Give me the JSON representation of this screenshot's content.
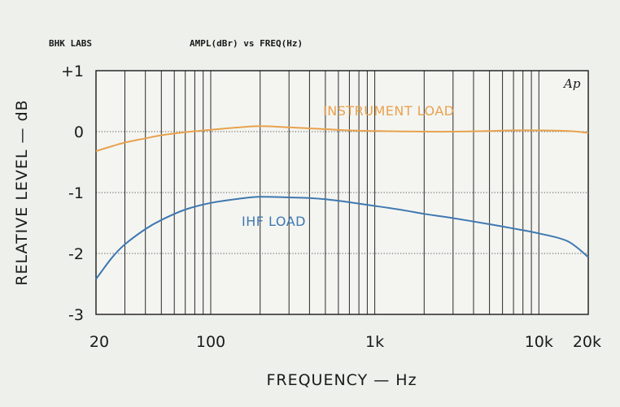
{
  "chart_data": {
    "type": "line",
    "header_left": "BHK LABS",
    "header_title": "AMPL(dBr) vs FREQ(Hz)",
    "corner_mark": "Ap",
    "xlabel": "FREQUENCY — Hz",
    "ylabel": "RELATIVE LEVEL — dB",
    "x_scale": "log",
    "xlim": [
      20,
      20000
    ],
    "ylim": [
      -3,
      1
    ],
    "grid": true,
    "y_ticks": [
      {
        "value": 1,
        "label": "+1"
      },
      {
        "value": 0,
        "label": "0"
      },
      {
        "value": -1,
        "label": "-1"
      },
      {
        "value": -2,
        "label": "-2"
      },
      {
        "value": -3,
        "label": "-3"
      }
    ],
    "x_ticks": [
      {
        "value": 20,
        "label": "20"
      },
      {
        "value": 100,
        "label": "100"
      },
      {
        "value": 1000,
        "label": "1k"
      },
      {
        "value": 10000,
        "label": "10k"
      },
      {
        "value": 20000,
        "label": "20k"
      }
    ],
    "series": [
      {
        "name": "INSTRUMENT LOAD",
        "color": "#e8a24e",
        "x": [
          20,
          25,
          30,
          40,
          50,
          70,
          100,
          150,
          200,
          300,
          500,
          700,
          1000,
          2000,
          3000,
          5000,
          7000,
          10000,
          15000,
          20000
        ],
        "y": [
          -0.32,
          -0.24,
          -0.18,
          -0.11,
          -0.06,
          -0.01,
          0.03,
          0.07,
          0.09,
          0.07,
          0.04,
          0.02,
          0.01,
          0.0,
          0.0,
          0.01,
          0.02,
          0.02,
          0.01,
          -0.02
        ]
      },
      {
        "name": "IHF LOAD",
        "color": "#3f78b0",
        "x": [
          20,
          25,
          30,
          40,
          50,
          70,
          100,
          150,
          200,
          300,
          400,
          500,
          700,
          1000,
          1500,
          2000,
          3000,
          5000,
          7000,
          10000,
          15000,
          20000
        ],
        "y": [
          -2.42,
          -2.07,
          -1.85,
          -1.6,
          -1.45,
          -1.28,
          -1.17,
          -1.1,
          -1.07,
          -1.08,
          -1.09,
          -1.11,
          -1.16,
          -1.22,
          -1.29,
          -1.35,
          -1.42,
          -1.52,
          -1.59,
          -1.67,
          -1.8,
          -2.06
        ]
      }
    ]
  }
}
